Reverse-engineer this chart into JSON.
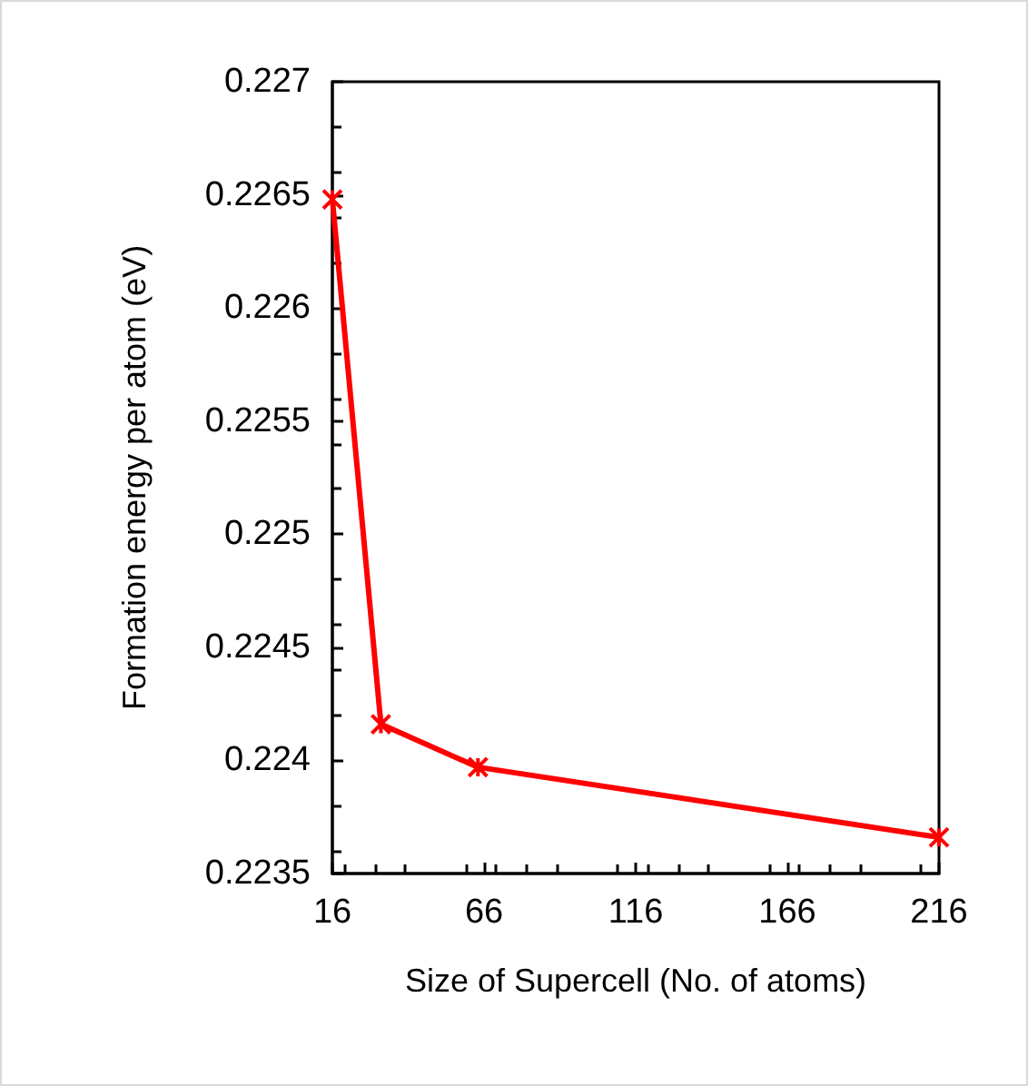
{
  "chart_data": {
    "type": "line",
    "xlabel": "Size of Supercell (No. of atoms)",
    "ylabel": "Formation energy per atom (eV)",
    "x": [
      16,
      32,
      64,
      216
    ],
    "series": [
      {
        "color": "#ff0000",
        "values": [
          0.22648,
          0.22416,
          0.22397,
          0.22366
        ]
      }
    ],
    "xlim": [
      16,
      216
    ],
    "xticks": [
      16,
      66,
      116,
      166,
      216
    ],
    "ylim": [
      0.2235,
      0.227
    ],
    "yticks": [
      0.2235,
      0.224,
      0.2245,
      0.225,
      0.2255,
      0.226,
      0.2265,
      0.227
    ],
    "grid": false,
    "marker": "cross",
    "line_style": "solid"
  }
}
